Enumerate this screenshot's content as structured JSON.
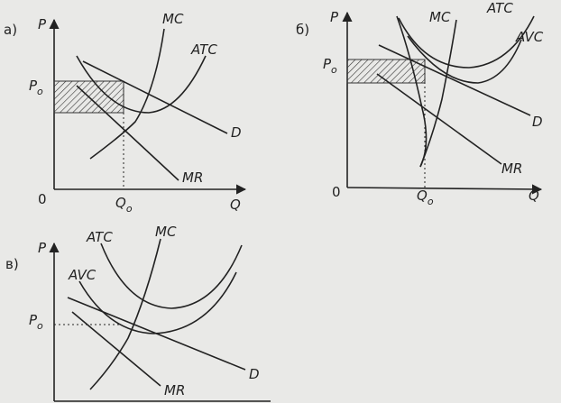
{
  "panels": [
    {
      "label": "а)",
      "y_axis": "P",
      "x_axis": "Q",
      "origin": "0",
      "price": {
        "main": "P",
        "sub": "o"
      },
      "quantity": {
        "main": "Q",
        "sub": "o"
      },
      "curves": {
        "mc": "MC",
        "atc": "ATC",
        "d": "D",
        "mr": "MR"
      }
    },
    {
      "label": "б)",
      "y_axis": "P",
      "x_axis": "Q",
      "origin": "0",
      "price": {
        "main": "P",
        "sub": "o"
      },
      "quantity": {
        "main": "Q",
        "sub": "o"
      },
      "curves": {
        "mc": "MC",
        "atc": "ATC",
        "avc": "AVC",
        "d": "D",
        "mr": "MR"
      }
    },
    {
      "label": "в)",
      "y_axis": "P",
      "price": {
        "main": "P",
        "sub": "o"
      },
      "curves": {
        "atc": "ATC",
        "mc": "MC",
        "avc": "AVC",
        "d": "D",
        "mr": "MR"
      }
    }
  ]
}
